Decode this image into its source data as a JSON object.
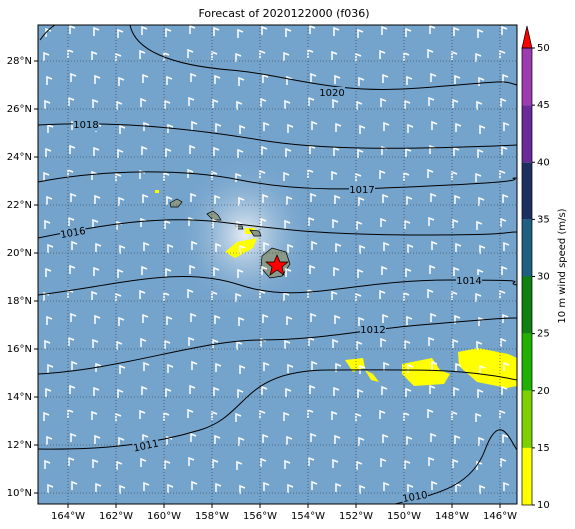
{
  "title": "Forecast of 2020122000 (f036)",
  "longitude_labels": [
    "164°W",
    "162°W",
    "160°W",
    "158°W",
    "156°W",
    "154°W",
    "152°W",
    "150°W",
    "148°W",
    "146°W"
  ],
  "latitude_labels": [
    "28°N",
    "26°N",
    "24°N",
    "22°N",
    "20°N",
    "18°N",
    "16°N",
    "14°N",
    "12°N",
    "10°N"
  ],
  "isobar_labels": [
    "1020",
    "1018",
    "1017",
    "1016",
    "1014",
    "1012",
    "1011",
    "1010"
  ],
  "colorbar": {
    "label": "10 m wind speed (m/s)",
    "ticks": [
      "10",
      "15",
      "20",
      "25",
      "30",
      "35",
      "40",
      "45",
      "50"
    ]
  }
}
